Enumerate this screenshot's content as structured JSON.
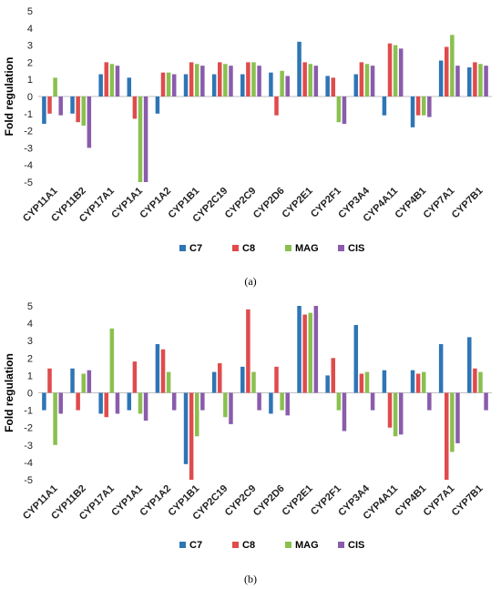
{
  "chart_data": [
    {
      "type": "bar",
      "panel_label": "(a)",
      "ylabel": "Fold regulation",
      "ylim": [
        -5,
        5
      ],
      "yticks": [
        -5,
        -4,
        -3,
        -2,
        -1,
        0,
        1,
        2,
        3,
        4,
        5
      ],
      "categories": [
        "CYP11A1",
        "CYP11B2",
        "CYP17A1",
        "CYP1A1",
        "CYP1A2",
        "CYP1B1",
        "CYP2C19",
        "CYP2C9",
        "CYP2D6",
        "CYP2E1",
        "CYP2F1",
        "CYP3A4",
        "CYP4A11",
        "CYP4B1",
        "CYP7A1",
        "CYP7B1"
      ],
      "legend_position": "bottom",
      "series": [
        {
          "name": "C7",
          "color": "#2e75b6",
          "values": [
            -1.6,
            -1.0,
            1.3,
            1.1,
            -1.0,
            1.3,
            1.3,
            1.3,
            1.4,
            3.2,
            1.2,
            1.3,
            -1.1,
            -1.8,
            2.1,
            1.7
          ]
        },
        {
          "name": "C8",
          "color": "#e04b4b",
          "values": [
            -1.0,
            -1.5,
            2.0,
            -1.3,
            1.4,
            2.0,
            2.0,
            2.0,
            -1.1,
            2.0,
            1.1,
            2.0,
            3.1,
            -1.1,
            2.9,
            2.0
          ]
        },
        {
          "name": "MAG",
          "color": "#8ac04f",
          "values": [
            1.1,
            -1.7,
            1.9,
            -5.0,
            1.4,
            1.9,
            1.9,
            2.0,
            1.5,
            1.9,
            -1.5,
            1.9,
            3.0,
            -1.1,
            3.6,
            1.9
          ]
        },
        {
          "name": "CIS",
          "color": "#8a5cac",
          "values": [
            -1.1,
            -3.0,
            1.8,
            -5.0,
            1.3,
            1.8,
            1.8,
            1.8,
            1.2,
            1.8,
            -1.6,
            1.8,
            2.8,
            -1.2,
            1.8,
            1.8
          ]
        }
      ]
    },
    {
      "type": "bar",
      "panel_label": "(b)",
      "ylabel": "Fold regulation",
      "ylim": [
        -5,
        5
      ],
      "yticks": [
        -5,
        -4,
        -3,
        -2,
        -1,
        0,
        1,
        2,
        3,
        4,
        5
      ],
      "categories": [
        "CYP11A1",
        "CYP11B2",
        "CYP17A1",
        "CYP1A1",
        "CYP1A2",
        "CYP1B1",
        "CYP2C19",
        "CYP2C9",
        "CYP2D6",
        "CYP2E1",
        "CYP2F1",
        "CYP3A4",
        "CYP4A11",
        "CYP4B1",
        "CYP7A1",
        "CYP7B1"
      ],
      "legend_position": "bottom",
      "series": [
        {
          "name": "C7",
          "color": "#2e75b6",
          "values": [
            -1.0,
            1.4,
            -1.2,
            -1.0,
            2.8,
            -4.1,
            1.2,
            1.5,
            -1.2,
            5.0,
            1.0,
            3.9,
            1.3,
            1.3,
            2.8,
            3.2
          ]
        },
        {
          "name": "C8",
          "color": "#e04b4b",
          "values": [
            1.4,
            -1.0,
            -1.4,
            1.8,
            2.5,
            -5.0,
            1.7,
            4.8,
            1.5,
            4.5,
            2.0,
            1.1,
            -2.0,
            1.1,
            -5.0,
            1.4
          ]
        },
        {
          "name": "MAG",
          "color": "#8ac04f",
          "values": [
            -3.0,
            1.1,
            3.7,
            -1.2,
            1.2,
            -2.5,
            -1.4,
            1.2,
            -1.0,
            4.6,
            -1.0,
            1.2,
            -2.5,
            1.2,
            -3.4,
            1.2
          ]
        },
        {
          "name": "CIS",
          "color": "#8a5cac",
          "values": [
            -1.2,
            1.3,
            -1.2,
            -1.6,
            -1.0,
            -1.0,
            -1.8,
            -1.0,
            -1.3,
            5.0,
            -2.2,
            -1.0,
            -2.4,
            -1.0,
            -2.9,
            -1.0
          ]
        }
      ]
    }
  ]
}
